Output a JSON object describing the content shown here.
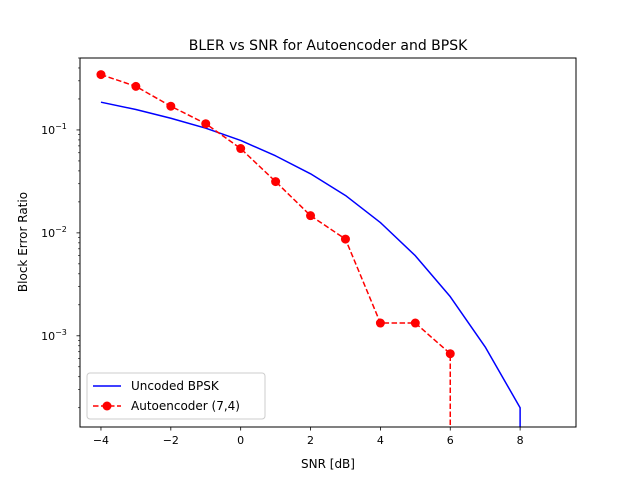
{
  "chart_data": {
    "type": "line",
    "title": "BLER vs SNR for Autoencoder and BPSK",
    "xlabel": "SNR [dB]",
    "ylabel": "Block Error Ratio",
    "xlim": [
      -4.6,
      9.6
    ],
    "ylim": [
      0.00013,
      0.5
    ],
    "yscale": "log",
    "grid": false,
    "legend_position": "lower-left",
    "xticks": [
      {
        "value": -4,
        "label": "−4"
      },
      {
        "value": -2,
        "label": "−2"
      },
      {
        "value": 0,
        "label": "0"
      },
      {
        "value": 2,
        "label": "2"
      },
      {
        "value": 4,
        "label": "4"
      },
      {
        "value": 6,
        "label": "6"
      },
      {
        "value": 8,
        "label": "8"
      }
    ],
    "yticks": [
      {
        "value": 0.001,
        "base": "10",
        "exp": "−3"
      },
      {
        "value": 0.01,
        "base": "10",
        "exp": "−2"
      },
      {
        "value": 0.1,
        "base": "10",
        "exp": "−1"
      }
    ],
    "series": [
      {
        "name": "Uncoded BPSK",
        "color": "#0000ff",
        "linestyle": "solid",
        "marker": "none",
        "x": [
          -4,
          -3,
          -2,
          -1,
          0,
          1,
          2,
          3,
          4,
          5,
          6,
          7,
          8,
          8
        ],
        "y": [
          0.186,
          0.158,
          0.13,
          0.104,
          0.079,
          0.056,
          0.0375,
          0.0231,
          0.0126,
          0.006,
          0.0024,
          0.00078,
          0.0002,
          0.00013
        ]
      },
      {
        "name": "Autoencoder (7,4)",
        "color": "#ff0000",
        "linestyle": "dashed",
        "marker": "circle",
        "x": [
          -4,
          -3,
          -2,
          -1,
          0,
          1,
          2,
          3,
          4,
          5,
          6,
          6
        ],
        "y": [
          0.345,
          0.265,
          0.17,
          0.115,
          0.066,
          0.0315,
          0.0147,
          0.0087,
          0.00133,
          0.00133,
          0.00067,
          0.00013
        ],
        "markers_count": 11
      }
    ]
  }
}
